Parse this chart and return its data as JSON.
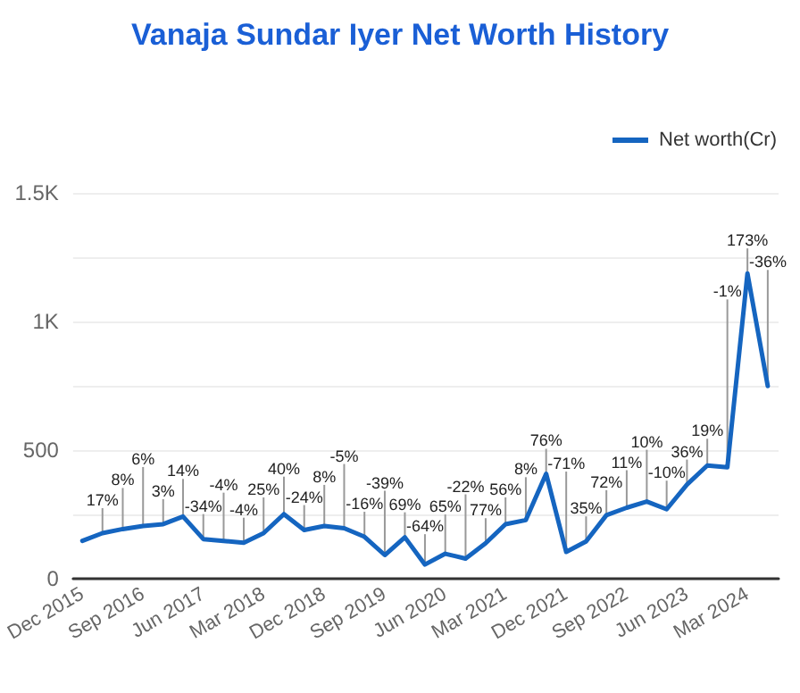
{
  "chart_data": {
    "type": "line",
    "title": "Vanaja Sundar Iyer Net Worth History",
    "x": [
      "2015-12",
      "2016-03",
      "2016-06",
      "2016-09",
      "2016-12",
      "2017-03",
      "2017-06",
      "2017-09",
      "2017-12",
      "2018-03",
      "2018-06",
      "2018-09",
      "2018-12",
      "2019-03",
      "2019-06",
      "2019-09",
      "2019-12",
      "2020-03",
      "2020-06",
      "2020-09",
      "2020-12",
      "2021-03",
      "2021-06",
      "2021-09",
      "2021-12",
      "2022-03",
      "2022-06",
      "2022-09",
      "2022-12",
      "2023-03",
      "2023-06",
      "2023-09",
      "2023-12",
      "2024-03",
      "2024-06"
    ],
    "series": [
      {
        "name": "Net worth(Cr)",
        "color": "#1565c0",
        "values": [
          147,
          177,
          193,
          205,
          212,
          242,
          154,
          147,
          140,
          177,
          251,
          189,
          205,
          196,
          163,
          92,
          161,
          55,
          97,
          78,
          138,
          212,
          228,
          408,
          104,
          145,
          247,
          276,
          300,
          270,
          366,
          440,
          433,
          1187,
          749
        ]
      }
    ],
    "xlim": [
      "2015-10-20",
      "2024-07-20"
    ],
    "xticks": [
      {
        "value": "2015-12",
        "label": "Dec 2015"
      },
      {
        "value": "2016-09",
        "label": "Sep 2016"
      },
      {
        "value": "2017-06",
        "label": "Jun 2017"
      },
      {
        "value": "2018-03",
        "label": "Mar 2018"
      },
      {
        "value": "2018-12",
        "label": "Dec 2018"
      },
      {
        "value": "2019-09",
        "label": "Sep 2019"
      },
      {
        "value": "2020-06",
        "label": "Jun 2020"
      },
      {
        "value": "2021-03",
        "label": "Mar 2021"
      },
      {
        "value": "2021-12",
        "label": "Dec 2021"
      },
      {
        "value": "2022-09",
        "label": "Sep 2022"
      },
      {
        "value": "2023-06",
        "label": "Jun 2023"
      },
      {
        "value": "2024-03",
        "label": "Mar 2024"
      }
    ],
    "ylim": [
      0,
      1500
    ],
    "yticks": [
      0,
      {
        "value": 250,
        "label": null
      },
      500,
      {
        "value": 750,
        "label": null
      },
      {
        "value": 1000,
        "label": "1K"
      },
      {
        "value": 1250,
        "label": null
      },
      {
        "value": 1500,
        "label": "1.5K"
      }
    ],
    "grid": "y",
    "legend": "top right",
    "marker": "none",
    "line_style": "solid",
    "annotations": [
      {
        "text": "17%",
        "x": "2016-03",
        "y": 177
      },
      {
        "text": "8%",
        "x": "2016-06",
        "y": 193
      },
      {
        "text": "6%",
        "x": "2016-09",
        "y": 205
      },
      {
        "text": "3%",
        "x": "2016-12",
        "y": 212
      },
      {
        "text": "14%",
        "x": "2017-03",
        "y": 242
      },
      {
        "text": "-34%",
        "x": "2017-06",
        "y": 154
      },
      {
        "text": "-4%",
        "x": "2017-09",
        "y": 147
      },
      {
        "text": "-4%",
        "x": "2017-12",
        "y": 140
      },
      {
        "text": "25%",
        "x": "2018-03",
        "y": 177
      },
      {
        "text": "40%",
        "x": "2018-06",
        "y": 251
      },
      {
        "text": "-24%",
        "x": "2018-09",
        "y": 189
      },
      {
        "text": "8%",
        "x": "2018-12",
        "y": 205
      },
      {
        "text": "-5%",
        "x": "2019-03",
        "y": 196
      },
      {
        "text": "-16%",
        "x": "2019-06",
        "y": 163
      },
      {
        "text": "-39%",
        "x": "2019-09",
        "y": 92
      },
      {
        "text": "69%",
        "x": "2019-12",
        "y": 161
      },
      {
        "text": "-64%",
        "x": "2020-03",
        "y": 55
      },
      {
        "text": "65%",
        "x": "2020-06",
        "y": 97
      },
      {
        "text": "-22%",
        "x": "2020-09",
        "y": 78
      },
      {
        "text": "77%",
        "x": "2020-12",
        "y": 138
      },
      {
        "text": "56%",
        "x": "2021-03",
        "y": 212
      },
      {
        "text": "8%",
        "x": "2021-06",
        "y": 228
      },
      {
        "text": "76%",
        "x": "2021-09",
        "y": 408
      },
      {
        "text": "-71%",
        "x": "2021-12",
        "y": 104
      },
      {
        "text": "35%",
        "x": "2022-03",
        "y": 145
      },
      {
        "text": "72%",
        "x": "2022-06",
        "y": 247
      },
      {
        "text": "11%",
        "x": "2022-09",
        "y": 276
      },
      {
        "text": "10%",
        "x": "2022-12",
        "y": 300
      },
      {
        "text": "-10%",
        "x": "2023-03",
        "y": 270
      },
      {
        "text": "36%",
        "x": "2023-06",
        "y": 366
      },
      {
        "text": "19%",
        "x": "2023-09",
        "y": 440
      },
      {
        "text": "-1%",
        "x": "2023-12",
        "y": 433
      },
      {
        "text": "173%",
        "x": "2024-03",
        "y": 1187
      },
      {
        "text": "-36%",
        "x": "2024-06",
        "y": 749
      }
    ]
  }
}
